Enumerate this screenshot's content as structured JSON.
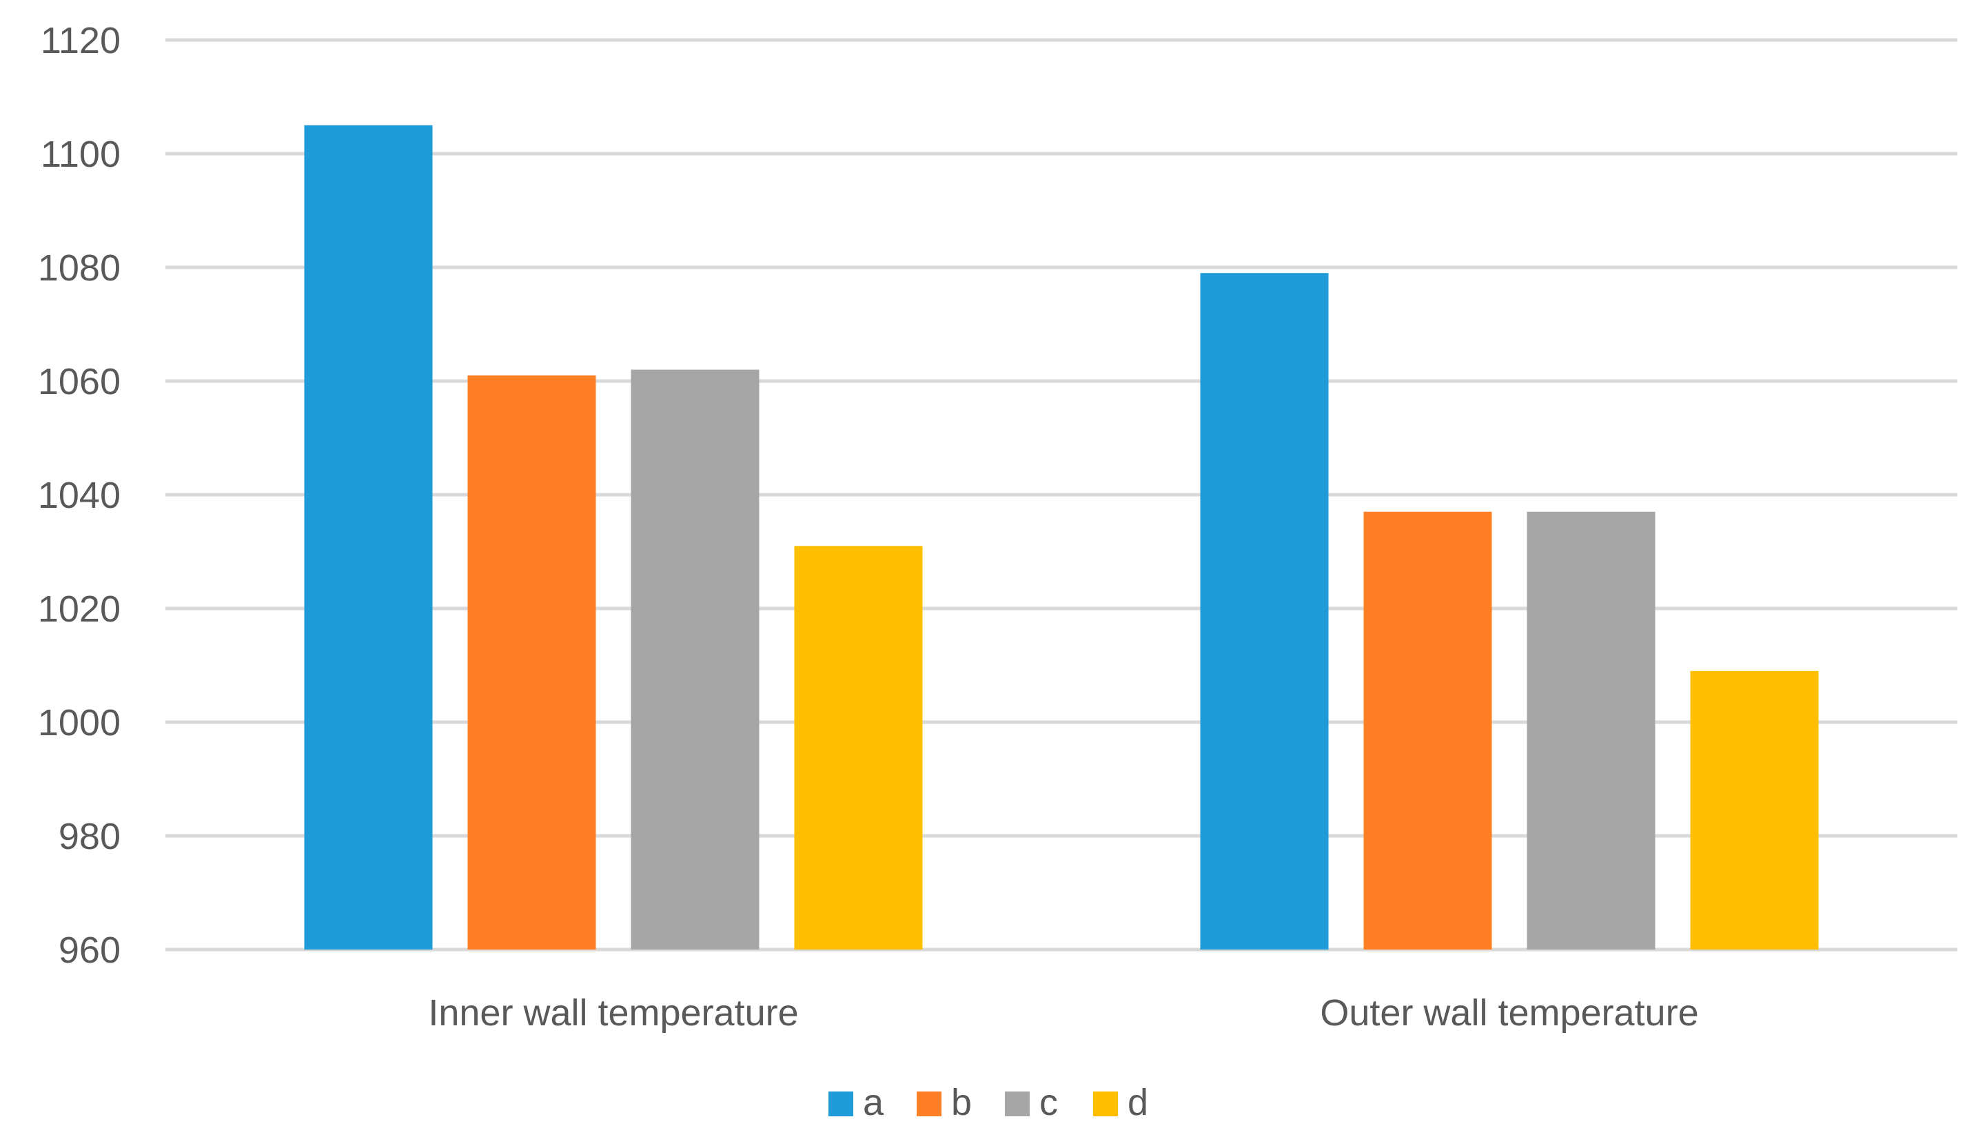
{
  "chart_data": {
    "type": "bar",
    "title": "",
    "xlabel": "",
    "ylabel": "",
    "categories": [
      "Inner wall temperature",
      "Outer wall temperature"
    ],
    "series": [
      {
        "name": "a",
        "color": "#1f9bd7",
        "values": [
          1105,
          1079
        ]
      },
      {
        "name": "b",
        "color": "#fe7f26",
        "values": [
          1061,
          1037
        ]
      },
      {
        "name": "c",
        "color": "#a6a6a6",
        "values": [
          1062,
          1037
        ]
      },
      {
        "name": "d",
        "color": "#fdbf00",
        "values": [
          1031,
          1009
        ]
      }
    ],
    "ylim": [
      960,
      1120
    ],
    "yticks": [
      960,
      980,
      1000,
      1020,
      1040,
      1060,
      1080,
      1100,
      1120
    ],
    "yticklabels": [
      "960",
      "980",
      "1000",
      "1020",
      "1040",
      "1060",
      "1080",
      "1100",
      "1120"
    ],
    "grid": true,
    "legend": "bottom-center"
  }
}
